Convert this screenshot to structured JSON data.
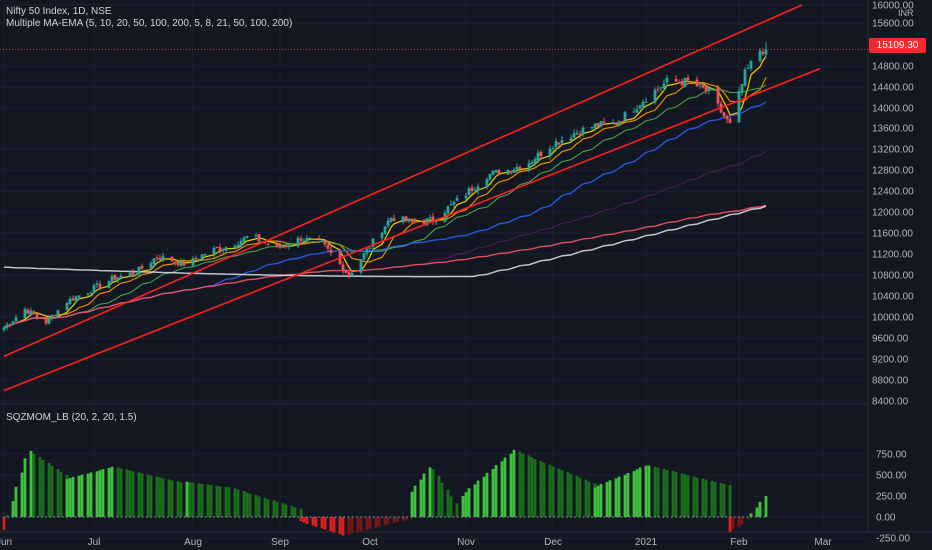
{
  "legend": {
    "title": "Nifty 50 Index, 1D, NSE",
    "indicator": "Multiple MA-EMA (5, 10, 20, 50, 100, 200, 5, 8, 21, 50, 100, 200)",
    "oscillator": "SQZMOM_LB (20, 2, 20, 1.5)"
  },
  "currency": "INR",
  "last_price": "15109.30",
  "colors": {
    "background": "#131722",
    "bull": "#26a69a",
    "bear": "#ef5350",
    "channel": "#ff1f1f",
    "hist_pos_strong": "#3ec23e",
    "hist_pos_weak": "#1b6e1b",
    "hist_neg_strong": "#e01e1e",
    "hist_neg_weak": "#7a1616"
  },
  "chart_data": [
    {
      "type": "candlestick",
      "title": "Nifty 50 Index, 1D, NSE",
      "x_ticks": [
        "Jun",
        "Jul",
        "Aug",
        "Sep",
        "Oct",
        "Nov",
        "Dec",
        "2021",
        "Feb",
        "Mar"
      ],
      "y_ticks": [
        "16000.00",
        "15600.00",
        "14800.00",
        "14400.00",
        "14000.00",
        "13600.00",
        "13200.00",
        "12800.00",
        "12400.00",
        "12000.00",
        "11600.00",
        "11200.00",
        "10800.00",
        "10400.00",
        "10000.00",
        "9600.00",
        "9200.00",
        "8800.00",
        "8400.00"
      ],
      "ylim": [
        8400,
        16000
      ],
      "last_close": 15109.3,
      "close_path": [
        [
          "2020-06-01",
          9800
        ],
        [
          "2020-06-08",
          10150
        ],
        [
          "2020-06-15",
          9900
        ],
        [
          "2020-06-22",
          10300
        ],
        [
          "2020-07-01",
          10550
        ],
        [
          "2020-07-08",
          10750
        ],
        [
          "2020-07-15",
          10850
        ],
        [
          "2020-07-22",
          11150
        ],
        [
          "2020-08-01",
          11000
        ],
        [
          "2020-08-08",
          11250
        ],
        [
          "2020-08-15",
          11350
        ],
        [
          "2020-08-22",
          11550
        ],
        [
          "2020-08-31",
          11300
        ],
        [
          "2020-09-08",
          11500
        ],
        [
          "2020-09-15",
          11400
        ],
        [
          "2020-09-24",
          10800
        ],
        [
          "2020-10-01",
          11350
        ],
        [
          "2020-10-08",
          11900
        ],
        [
          "2020-10-15",
          11800
        ],
        [
          "2020-10-22",
          11850
        ],
        [
          "2020-11-02",
          12350
        ],
        [
          "2020-11-09",
          12700
        ],
        [
          "2020-11-16",
          12800
        ],
        [
          "2020-11-23",
          12950
        ],
        [
          "2020-12-01",
          13300
        ],
        [
          "2020-12-08",
          13500
        ],
        [
          "2020-12-15",
          13650
        ],
        [
          "2020-12-22",
          13700
        ],
        [
          "2021-01-01",
          14200
        ],
        [
          "2021-01-08",
          14500
        ],
        [
          "2021-01-15",
          14500
        ],
        [
          "2021-01-22",
          14300
        ],
        [
          "2021-01-29",
          13650
        ],
        [
          "2021-02-03",
          14650
        ],
        [
          "2021-02-08",
          15100
        ],
        [
          "2021-02-10",
          15109.3
        ]
      ],
      "channel_lines": [
        {
          "start": [
            "2020-06-01",
            9250
          ],
          "end": [
            "2021-02-22",
            16000
          ]
        },
        {
          "start": [
            "2020-06-01",
            8600
          ],
          "end": [
            "2021-02-28",
            14750
          ]
        }
      ]
    },
    {
      "type": "bar",
      "title": "SQZMOM_LB (20, 2, 20, 1.5)",
      "y_ticks": [
        "750.00",
        "500.00",
        "250.00",
        "0.00",
        "-250.00"
      ],
      "ylim": [
        -300,
        850
      ],
      "phases": [
        {
          "from": "2020-06-01",
          "to": "2020-06-22",
          "start": -150,
          "peak": 800,
          "end": 500
        },
        {
          "from": "2020-06-22",
          "to": "2020-08-01",
          "start": 450,
          "peak": 600,
          "end": 400
        },
        {
          "from": "2020-08-01",
          "to": "2020-09-08",
          "start": 420,
          "peak": 350,
          "end": 100
        },
        {
          "from": "2020-09-08",
          "to": "2020-10-15",
          "start": -50,
          "peak": -220,
          "end": -20
        },
        {
          "from": "2020-10-15",
          "to": "2020-11-01",
          "start": 300,
          "peak": 620,
          "end": 80
        },
        {
          "from": "2020-11-01",
          "to": "2020-12-15",
          "start": 250,
          "peak": 800,
          "end": 400
        },
        {
          "from": "2020-12-15",
          "to": "2021-01-29",
          "start": 350,
          "peak": 620,
          "end": 380
        },
        {
          "from": "2021-01-29",
          "to": "2021-02-10",
          "start": -180,
          "peak": -80,
          "end": 250
        }
      ]
    }
  ]
}
